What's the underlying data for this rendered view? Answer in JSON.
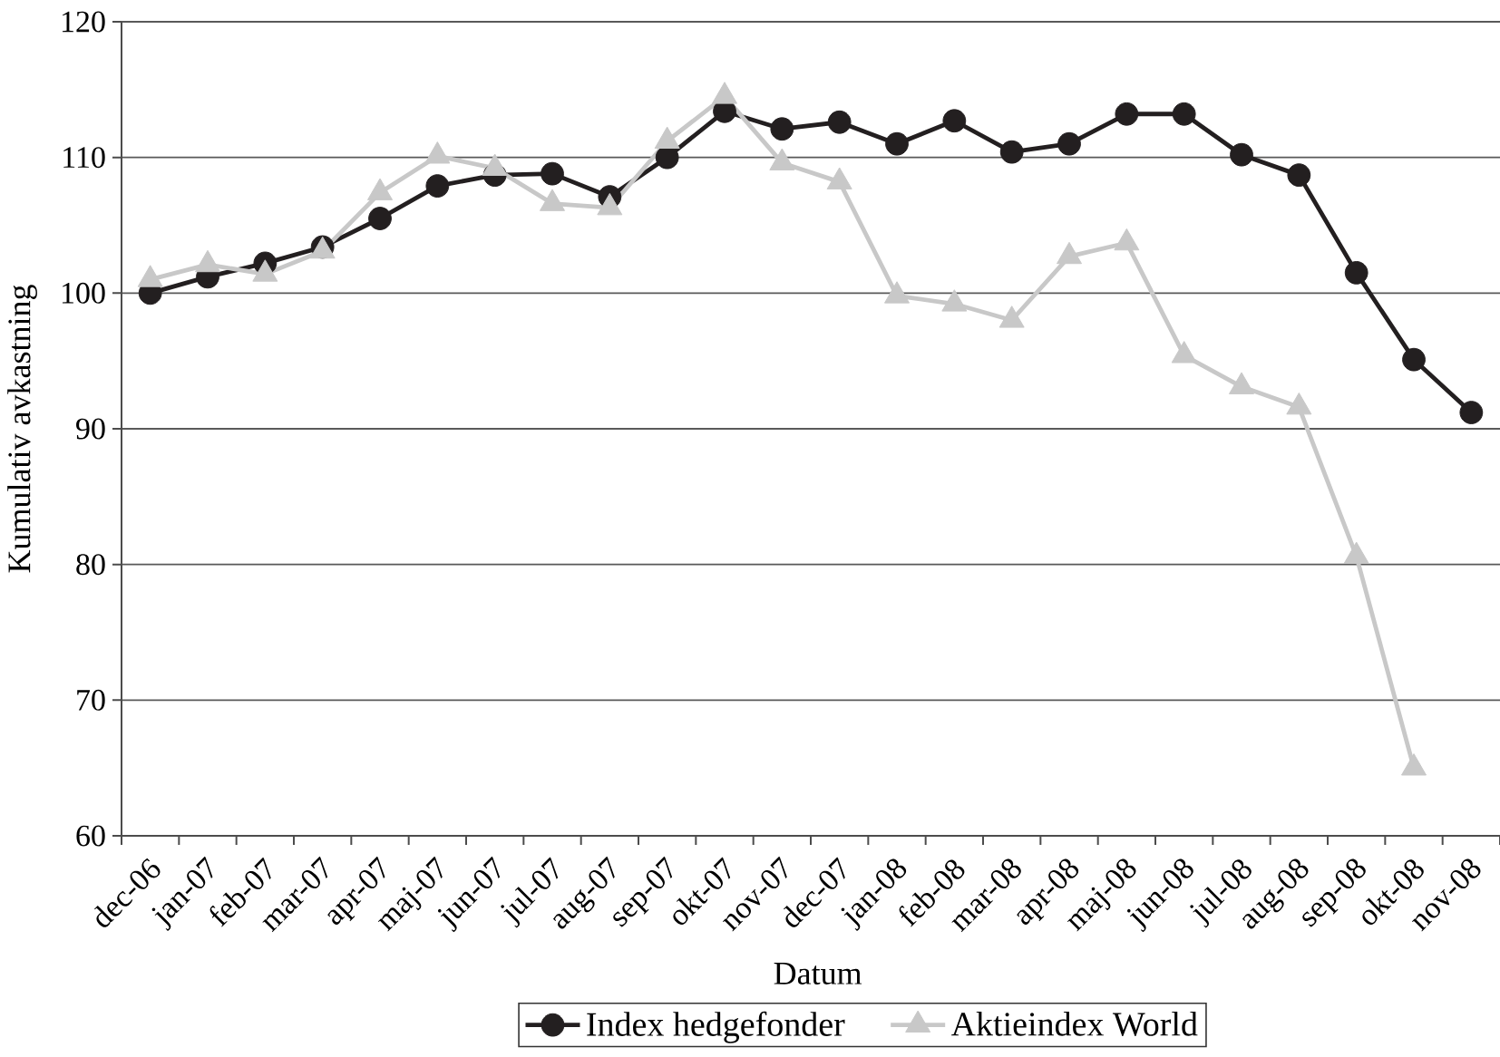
{
  "chart_data": {
    "type": "line",
    "xlabel": "Datum",
    "ylabel": "Kumulativ avkastning",
    "categories": [
      "dec-06",
      "jan-07",
      "feb-07",
      "mar-07",
      "apr-07",
      "maj-07",
      "jun-07",
      "jul-07",
      "aug-07",
      "sep-07",
      "okt-07",
      "nov-07",
      "dec-07",
      "jan-08",
      "feb-08",
      "mar-08",
      "apr-08",
      "maj-08",
      "jun-08",
      "jul-08",
      "aug-08",
      "sep-08",
      "okt-08",
      "nov-08"
    ],
    "series": [
      {
        "name": "Index hedgefonder",
        "color": "#231f20",
        "marker": "circle",
        "values": [
          100.0,
          101.2,
          102.2,
          103.4,
          105.5,
          107.9,
          108.7,
          108.8,
          107.1,
          110.0,
          113.4,
          112.1,
          112.6,
          111.0,
          112.7,
          110.4,
          111.0,
          113.2,
          113.2,
          110.2,
          108.7,
          101.5,
          95.1,
          91.2
        ]
      },
      {
        "name": "Aktieindex World",
        "color": "#c8c8c8",
        "marker": "triangle",
        "values": [
          101.0,
          102.1,
          101.4,
          103.1,
          107.4,
          110.1,
          109.2,
          106.6,
          106.3,
          111.2,
          114.5,
          109.6,
          108.2,
          99.8,
          99.2,
          98.0,
          102.7,
          103.7,
          95.4,
          93.1,
          91.6,
          80.6,
          65.0,
          null
        ]
      }
    ],
    "ylim": [
      60,
      120
    ],
    "yticks": [
      60,
      70,
      80,
      90,
      100,
      110,
      120
    ],
    "grid": "y",
    "legend": "bottom"
  }
}
